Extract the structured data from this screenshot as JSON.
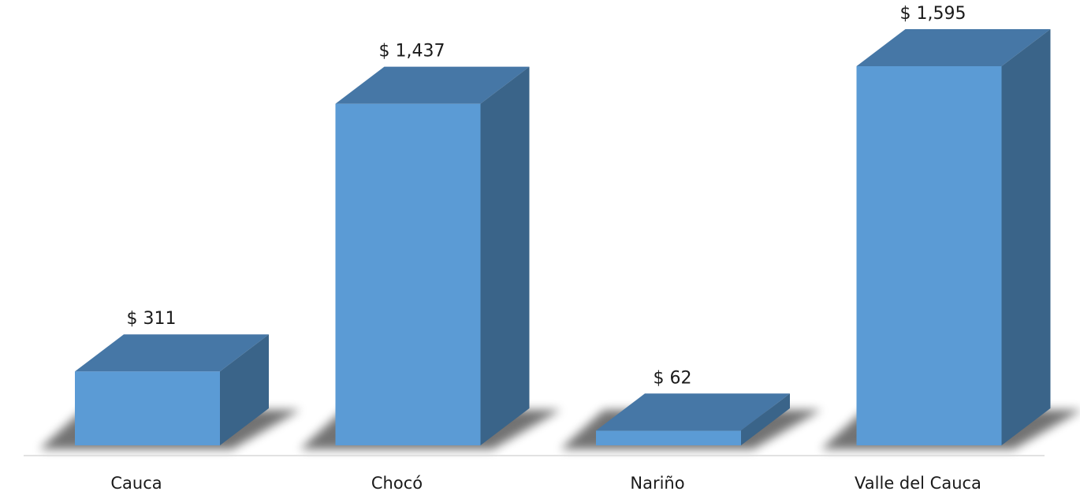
{
  "chart_data": {
    "type": "bar",
    "style": "3d-column",
    "title": "",
    "xlabel": "",
    "ylabel": "",
    "categories": [
      "Cauca",
      "Chocó",
      "Nariño",
      "Valle del Cauca"
    ],
    "values": [
      311,
      1437,
      62,
      1595
    ],
    "value_labels": [
      "$ 311",
      "$ 1,437",
      "$ 62",
      "$ 1,595"
    ],
    "ylim": [
      0,
      1595
    ],
    "grid": false,
    "legend": "none",
    "colors": {
      "front": "#5b9bd5",
      "top": "#4677a6",
      "side": "#3a6489",
      "baseline": "#d9d9d9"
    }
  }
}
